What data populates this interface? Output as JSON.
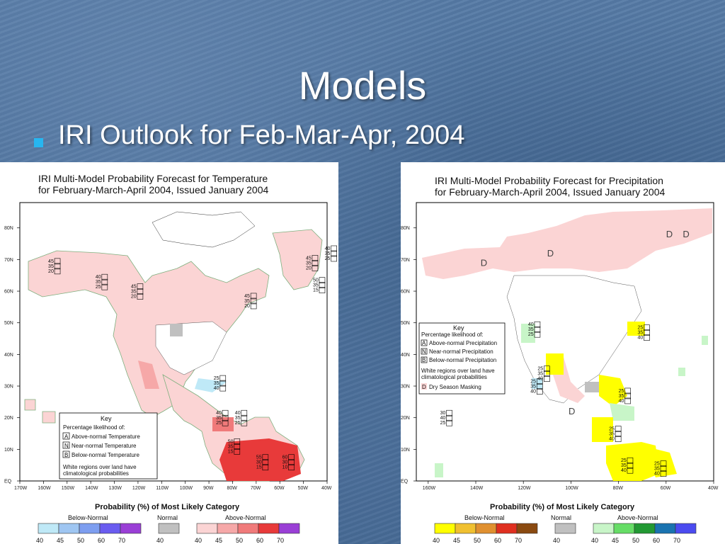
{
  "slide": {
    "title": "Models",
    "bullet": "IRI Outlook for Feb-Mar-Apr, 2004"
  },
  "colors": {
    "bullet": "#27b6f0",
    "temp_above": [
      "#fbd4d4",
      "#f6a8a8",
      "#f07a7a",
      "#e83a3a",
      "#9a3fd6"
    ],
    "temp_below": [
      "#bfe9f7",
      "#9fc6f2",
      "#7d9ef0",
      "#6a5cf0",
      "#9a3fd6"
    ],
    "normal": "#c0c0c0",
    "precip_below": [
      "#ffff00",
      "#f0c030",
      "#e09030",
      "#e03020",
      "#8a4a10"
    ],
    "precip_above": [
      "#c8f5c8",
      "#66dd66",
      "#229933",
      "#1a73b0",
      "#4b4bf0"
    ]
  },
  "charts": [
    {
      "name": "temperature",
      "title_line1": "IRI Multi-Model Probability Forecast for Temperature",
      "title_line2": "for February-March-April 2004, Issued January 2004",
      "lat_ticks": [
        "80N",
        "70N",
        "60N",
        "50N",
        "40N",
        "30N",
        "20N",
        "10N",
        "EQ"
      ],
      "lon_ticks": [
        "170W",
        "160W",
        "150W",
        "140W",
        "130W",
        "120W",
        "110W",
        "100W",
        "90W",
        "80W",
        "70W",
        "60W",
        "50W",
        "40W"
      ],
      "key": {
        "title": "Key",
        "subtitle": "Percentage likelihood of:",
        "items": [
          {
            "letter": "A",
            "label": "Above-normal Temperature"
          },
          {
            "letter": "N",
            "label": "Near-normal Temperature"
          },
          {
            "letter": "B",
            "label": "Below-normal Temperature"
          }
        ],
        "note_line1": "White regions over land have",
        "note_line2": "climatological probabilities"
      },
      "boxes": [
        {
          "lat": 69,
          "lon": -158,
          "vals": [
            "45",
            "35",
            "20"
          ]
        },
        {
          "lat": 64,
          "lon": -138,
          "vals": [
            "40",
            "35",
            "25"
          ]
        },
        {
          "lat": 61,
          "lon": -123,
          "vals": [
            "45",
            "35",
            "20"
          ]
        },
        {
          "lat": 70,
          "lon": -49,
          "vals": [
            "45",
            "35",
            "20"
          ]
        },
        {
          "lat": 73,
          "lon": -41,
          "vals": [
            "40",
            "35",
            "25"
          ]
        },
        {
          "lat": 63,
          "lon": -46,
          "vals": [
            "50",
            "35",
            "15"
          ]
        },
        {
          "lat": 58,
          "lon": -75,
          "vals": [
            "45",
            "35",
            "20"
          ]
        },
        {
          "lat": 32,
          "lon": -88,
          "vals": [
            "25",
            "35",
            "40"
          ]
        },
        {
          "lat": 21,
          "lon": -87,
          "vals": [
            "40",
            "35",
            "25"
          ]
        },
        {
          "lat": 21,
          "lon": -79,
          "vals": [
            "40",
            "35",
            "25"
          ]
        },
        {
          "lat": 12,
          "lon": -82,
          "vals": [
            "50",
            "35",
            "15"
          ]
        },
        {
          "lat": 7,
          "lon": -70,
          "vals": [
            "55",
            "30",
            "15"
          ]
        },
        {
          "lat": 7,
          "lon": -59,
          "vals": [
            "60",
            "30",
            "10"
          ]
        }
      ],
      "legend": {
        "title": "Probability (%) of Most Likely Category",
        "below_label": "Below-Normal",
        "normal_label": "Normal",
        "above_label": "Above-Normal",
        "below_ticks": [
          "40",
          "45",
          "50",
          "60",
          "70"
        ],
        "normal_ticks": [
          "40"
        ],
        "above_ticks": [
          "40",
          "45",
          "50",
          "60",
          "70"
        ]
      }
    },
    {
      "name": "precipitation",
      "title_line1": "IRI Multi-Model Probability Forecast for Precipitation",
      "title_line2": "for February-March-April 2004, Issued January 2004",
      "lat_ticks": [
        "80N",
        "70N",
        "60N",
        "50N",
        "40N",
        "30N",
        "20N",
        "10N",
        "EQ"
      ],
      "lon_ticks": [
        "160W",
        "140W",
        "120W",
        "100W",
        "80W",
        "60W",
        "40W"
      ],
      "key": {
        "title": "Key",
        "subtitle": "Percentage likelihood of:",
        "items": [
          {
            "letter": "A",
            "label": "Above-normal Precipitation"
          },
          {
            "letter": "N",
            "label": "Near-normal Precipitation"
          },
          {
            "letter": "B",
            "label": "Below-normal Precipitation"
          }
        ],
        "note_line1": "White regions over land have",
        "note_line2": "climatological probabilities",
        "dry_letter": "D",
        "dry_label": "Dry Season Masking"
      },
      "dry_marks": [
        {
          "lat": 77,
          "lon": -60
        },
        {
          "lat": 77,
          "lon": -53
        },
        {
          "lat": 71,
          "lon": -110
        },
        {
          "lat": 68,
          "lon": -138
        },
        {
          "lat": 21,
          "lon": -101
        }
      ],
      "boxes": [
        {
          "lat": 49,
          "lon": -118,
          "vals": [
            "40",
            "35",
            "25"
          ]
        },
        {
          "lat": 48,
          "lon": -72,
          "vals": [
            "25",
            "35",
            "40"
          ]
        },
        {
          "lat": 35,
          "lon": -114,
          "vals": [
            "25",
            "35",
            "40"
          ]
        },
        {
          "lat": 31,
          "lon": -117,
          "vals": [
            "25",
            "35",
            "40"
          ]
        },
        {
          "lat": 28,
          "lon": -80,
          "vals": [
            "25",
            "35",
            "40"
          ]
        },
        {
          "lat": 21,
          "lon": -155,
          "vals": [
            "30",
            "40",
            "25"
          ]
        },
        {
          "lat": 16,
          "lon": -84,
          "vals": [
            "25",
            "35",
            "40"
          ]
        },
        {
          "lat": 6,
          "lon": -79,
          "vals": [
            "25",
            "35",
            "40"
          ]
        },
        {
          "lat": 5,
          "lon": -65,
          "vals": [
            "25",
            "35",
            "40"
          ]
        }
      ],
      "legend": {
        "title": "Probability (%) of Most Likely Category",
        "below_label": "Below-Normal",
        "normal_label": "Normal",
        "above_label": "Above-Normal",
        "below_ticks": [
          "40",
          "45",
          "50",
          "60",
          "70"
        ],
        "normal_ticks": [
          "40"
        ],
        "above_ticks": [
          "40",
          "45",
          "50",
          "60",
          "70"
        ]
      }
    }
  ]
}
